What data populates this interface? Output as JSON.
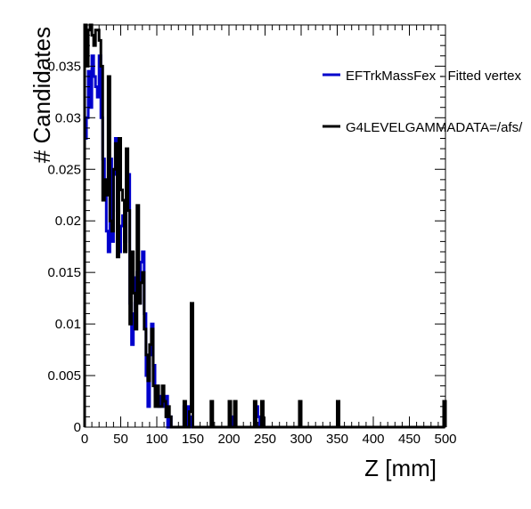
{
  "chart_data": {
    "type": "histogram",
    "xlabel": "Z [mm]",
    "ylabel": "# Candidates",
    "xlim": [
      0,
      500
    ],
    "ylim": [
      0,
      0.039
    ],
    "x_ticks": [
      0,
      50,
      100,
      150,
      200,
      250,
      300,
      350,
      400,
      450,
      500
    ],
    "y_ticks": [
      0,
      0.005,
      0.01,
      0.015,
      0.02,
      0.025,
      0.03,
      0.035
    ],
    "x_tick_labels": [
      "0",
      "50",
      "100",
      "150",
      "200",
      "250",
      "300",
      "350",
      "400",
      "450",
      "500"
    ],
    "y_tick_labels": [
      "0",
      "0.005",
      "0.01",
      "0.015",
      "0.02",
      "0.025",
      "0.03",
      "0.035"
    ],
    "grid": false,
    "legend_position": "top-right",
    "bin_width": 2.5,
    "series": [
      {
        "name": "EFTrkMassFex - Fitted vertex",
        "color": "#0000cc",
        "points": [
          [
            0,
            0.028
          ],
          [
            2.5,
            0.03
          ],
          [
            5,
            0.0345
          ],
          [
            7.5,
            0.031
          ],
          [
            10,
            0.036
          ],
          [
            12.5,
            0.034
          ],
          [
            15,
            0.033
          ],
          [
            17.5,
            0.032
          ],
          [
            20,
            0.036
          ],
          [
            22.5,
            0.03
          ],
          [
            25,
            0.026
          ],
          [
            27.5,
            0.024
          ],
          [
            30,
            0.019
          ],
          [
            32.5,
            0.017
          ],
          [
            35,
            0.026
          ],
          [
            37.5,
            0.018
          ],
          [
            40,
            0.0245
          ],
          [
            42.5,
            0.028
          ],
          [
            45,
            0.021
          ],
          [
            47.5,
            0.017
          ],
          [
            50,
            0.0195
          ],
          [
            52.5,
            0.0205
          ],
          [
            55,
            0.018
          ],
          [
            57.5,
            0.024
          ],
          [
            60,
            0.0245
          ],
          [
            62.5,
            0.012
          ],
          [
            65,
            0.008
          ],
          [
            67.5,
            0.011
          ],
          [
            70,
            0.0145
          ],
          [
            72.5,
            0.015
          ],
          [
            75,
            0.012
          ],
          [
            77.5,
            0.016
          ],
          [
            80,
            0.017
          ],
          [
            82.5,
            0.011
          ],
          [
            85,
            0.005
          ],
          [
            87.5,
            0.002
          ],
          [
            90,
            0.007
          ],
          [
            92.5,
            0.01
          ],
          [
            95,
            0.006
          ],
          [
            97.5,
            0.003
          ],
          [
            100,
            0.004
          ],
          [
            102.5,
            0.002
          ],
          [
            105,
            0.003
          ],
          [
            107.5,
            0.003
          ],
          [
            110,
            0.002
          ],
          [
            112.5,
            0.003
          ],
          [
            117.5,
            0.001
          ],
          [
            137.5,
            0.002
          ],
          [
            142.5,
            0.002
          ],
          [
            147.5,
            0.001
          ],
          [
            200,
            0.002
          ],
          [
            202.5,
            0.001
          ],
          [
            237.5,
            0.002
          ],
          [
            240,
            0.001
          ]
        ]
      },
      {
        "name": "G4LEVELGAMMADATA=/afs/",
        "color": "#000000",
        "points": [
          [
            0,
            0.039
          ],
          [
            2.5,
            0.035
          ],
          [
            5,
            0.0385
          ],
          [
            7.5,
            0.039
          ],
          [
            10,
            0.038
          ],
          [
            12.5,
            0.037
          ],
          [
            15,
            0.0385
          ],
          [
            17.5,
            0.0385
          ],
          [
            20,
            0.0375
          ],
          [
            22.5,
            0.035
          ],
          [
            25,
            0.022
          ],
          [
            27.5,
            0.024
          ],
          [
            30,
            0.0225
          ],
          [
            32.5,
            0.034
          ],
          [
            35,
            0.02
          ],
          [
            37.5,
            0.019
          ],
          [
            40,
            0.025
          ],
          [
            42.5,
            0.0275
          ],
          [
            45,
            0.0165
          ],
          [
            47.5,
            0.028
          ],
          [
            50,
            0.023
          ],
          [
            52.5,
            0.022
          ],
          [
            55,
            0.017
          ],
          [
            57.5,
            0.027
          ],
          [
            60,
            0.021
          ],
          [
            62.5,
            0.01
          ],
          [
            65,
            0.017
          ],
          [
            67.5,
            0.013
          ],
          [
            70,
            0.0095
          ],
          [
            72.5,
            0.0215
          ],
          [
            75,
            0.012
          ],
          [
            77.5,
            0.014
          ],
          [
            80,
            0.015
          ],
          [
            82.5,
            0.0095
          ],
          [
            85,
            0.007
          ],
          [
            87.5,
            0.0045
          ],
          [
            90,
            0.008
          ],
          [
            92.5,
            0.0095
          ],
          [
            95,
            0.004
          ],
          [
            97.5,
            0.002
          ],
          [
            100,
            0.004
          ],
          [
            102.5,
            0.002
          ],
          [
            105,
            0.002
          ],
          [
            107.5,
            0.004
          ],
          [
            110,
            0.0025
          ],
          [
            112.5,
            0.001
          ],
          [
            115,
            0.002
          ],
          [
            117.5,
            0.001
          ],
          [
            137.5,
            0.0025
          ],
          [
            145,
            0.0015
          ],
          [
            147.5,
            0.012
          ],
          [
            175,
            0.0025
          ],
          [
            200,
            0.0025
          ],
          [
            207.5,
            0.0025
          ],
          [
            235,
            0.0025
          ],
          [
            245,
            0.0025
          ],
          [
            297.5,
            0.0025
          ],
          [
            350,
            0.0025
          ],
          [
            497.5,
            0.0025
          ]
        ]
      }
    ]
  }
}
